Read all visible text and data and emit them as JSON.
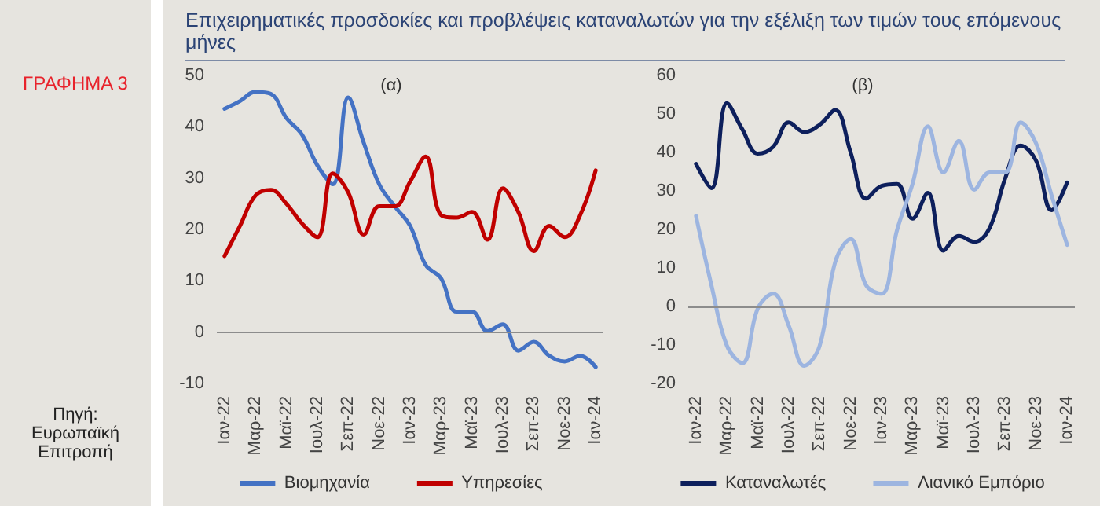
{
  "chart_data": [
    {
      "type": "line",
      "title": "Επιχειρηματικές προσδοκίες και προβλέψεις καταναλωτών για την εξέλιξη των τιμών τους επόμενους μήνες",
      "subtitle": "(α)",
      "annotations": [
        "ΓΡΑΦΗΜΑ 3",
        "Πηγή: Ευρωπαϊκή Επιτροπή"
      ],
      "categories": [
        "Ιαν-22",
        null,
        "Μαρ-22",
        null,
        "Μαϊ-22",
        null,
        "Ιουλ-22",
        null,
        "Σεπ-22",
        null,
        "Νοε-22",
        null,
        "Ιαν-23",
        null,
        "Μαρ-23",
        null,
        "Μαϊ-23",
        null,
        "Ιουλ-23",
        null,
        "Σεπ-23",
        null,
        "Νοε-23",
        null,
        "Ιαν-24"
      ],
      "series": [
        {
          "name": "Βιομηχανία",
          "color": "#4472c4",
          "values": [
            43.5,
            45,
            46.8,
            46.4,
            41.7,
            38.5,
            32.5,
            28.8,
            45.7,
            36.9,
            28.8,
            24.5,
            20.7,
            13.1,
            10.5,
            4,
            4,
            0.2,
            1.5,
            -3.6,
            -1.9,
            -4.6,
            -5.7,
            -4.6,
            -6.8
          ]
        },
        {
          "name": "Υπηρεσίες",
          "color": "#c00000",
          "values": [
            14.8,
            20.7,
            26.6,
            27.7,
            25,
            21.2,
            18.5,
            30.9,
            27.2,
            19,
            24.5,
            24.5,
            29.3,
            34.2,
            22.8,
            22.3,
            23.4,
            18,
            28,
            23.4,
            15.8,
            20.7,
            18.5,
            22.8,
            31.5
          ]
        }
      ],
      "ylim": [
        -10,
        50
      ],
      "yticks": [
        -10,
        0,
        10,
        20,
        30,
        40,
        50
      ],
      "ref_lines": [
        {
          "axis": "y",
          "value": 0,
          "color": "#8c8c8c"
        }
      ],
      "grid": false,
      "legend": "bottom",
      "marker": "none",
      "line_style": "solid"
    },
    {
      "type": "line",
      "subtitle": "(β)",
      "categories": [
        "Ιαν-22",
        null,
        "Μαρ-22",
        null,
        "Μαϊ-22",
        null,
        "Ιουλ-22",
        null,
        "Σεπ-22",
        null,
        "Νοε-22",
        null,
        "Ιαν-23",
        null,
        "Μαρ-23",
        null,
        "Μαϊ-23",
        null,
        "Ιουλ-23",
        null,
        "Σεπ-23",
        null,
        "Νοε-23",
        null,
        "Ιαν-24"
      ],
      "series": [
        {
          "name": "Καταναλωτές",
          "color": "#0d1f5c",
          "values": [
            37,
            30.7,
            52.8,
            46,
            39.7,
            41.5,
            47.8,
            45.3,
            47.2,
            51,
            40,
            28,
            31.3,
            31.8,
            22.8,
            29.5,
            14.5,
            18.3,
            16.8,
            20.5,
            33.3,
            41.8,
            37.8,
            25,
            32.2
          ]
        },
        {
          "name": "Λιανικό Εμπόριο",
          "color": "#9db5e0",
          "values": [
            23.5,
            5.5,
            -10.2,
            -14.7,
            -0.5,
            3.3,
            -5,
            -15.4,
            -10.2,
            11.5,
            17.5,
            5.5,
            3.3,
            19.8,
            31.8,
            46.8,
            34.8,
            43,
            30.3,
            34.8,
            34.8,
            47.8,
            42.3,
            28.8,
            16
          ]
        }
      ],
      "ylim": [
        -20,
        60
      ],
      "yticks": [
        -20,
        -10,
        0,
        10,
        20,
        30,
        40,
        50,
        60
      ],
      "ref_lines": [
        {
          "axis": "y",
          "value": 0,
          "color": "#8c8c8c"
        }
      ],
      "grid": false,
      "legend": "bottom",
      "marker": "none",
      "line_style": "solid"
    }
  ]
}
